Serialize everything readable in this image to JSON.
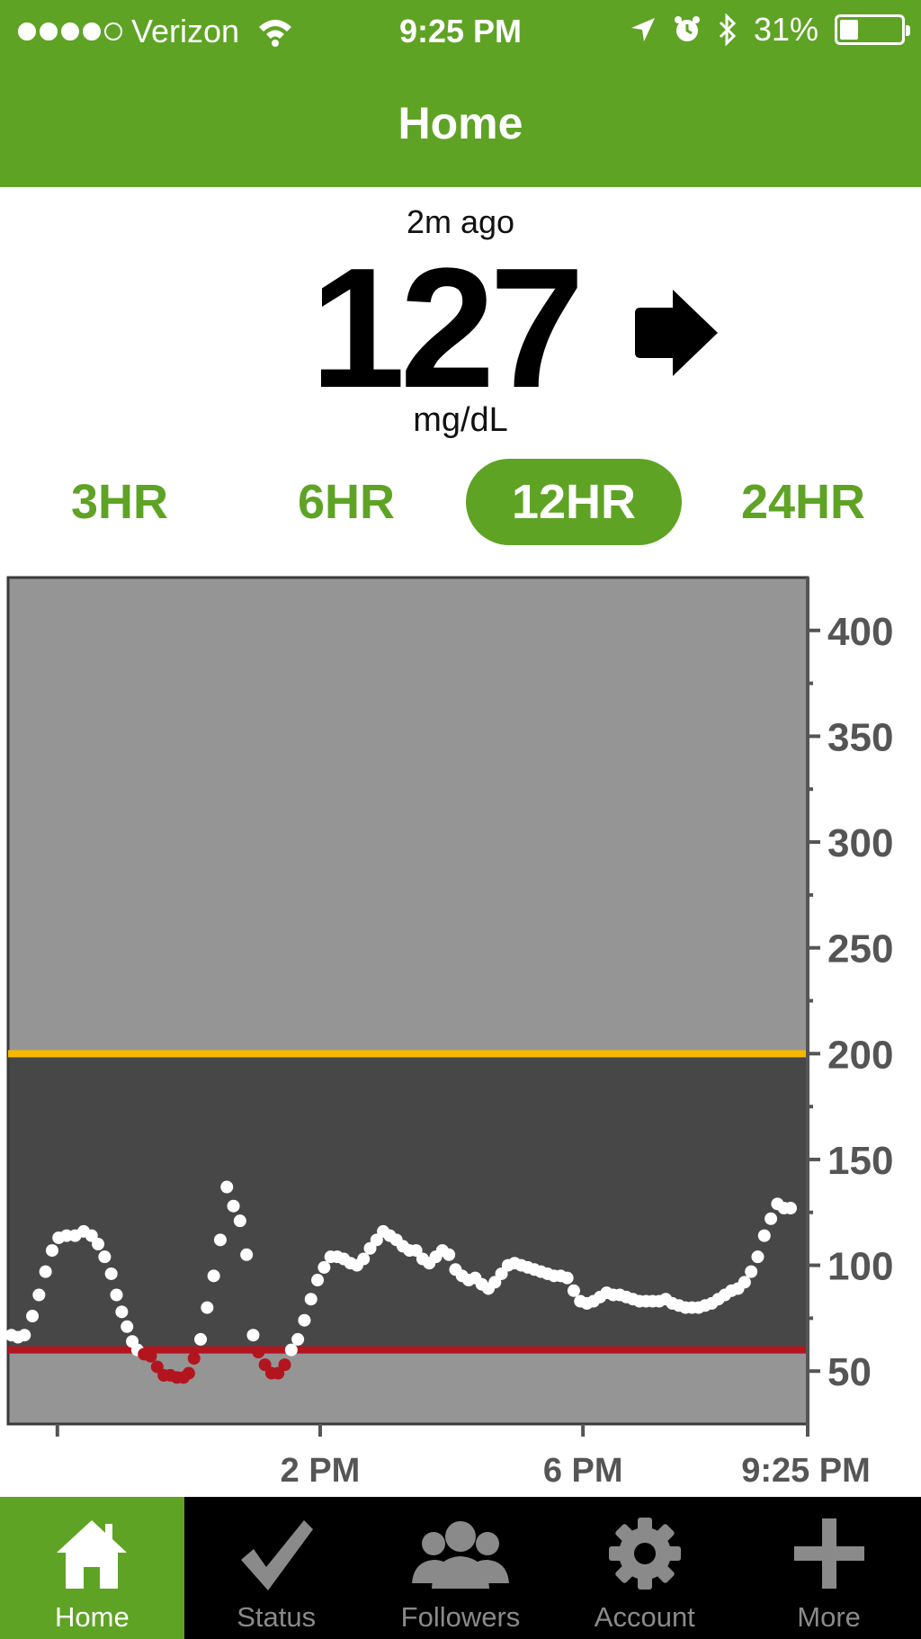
{
  "status_bar": {
    "carrier": "Verizon",
    "time": "9:25 PM",
    "battery": "31%",
    "battery_level": 0.31,
    "signal_bars": 4
  },
  "nav": {
    "title": "Home"
  },
  "reading": {
    "ago": "2m ago",
    "value": "127",
    "unit": "mg/dL",
    "trend": "steady-arrow-right"
  },
  "range_tabs": [
    {
      "label": "3HR",
      "active": false
    },
    {
      "label": "6HR",
      "active": false
    },
    {
      "label": "12HR",
      "active": true
    },
    {
      "label": "24HR",
      "active": false
    }
  ],
  "colors": {
    "brand_green": "#5fa325",
    "high_line": "#f5b800",
    "low_line": "#b3151f",
    "in_range_bg": "#474747",
    "out_range_bg": "#959595"
  },
  "chart_data": {
    "type": "scatter",
    "ylim": [
      25,
      425
    ],
    "yticks": [
      "400",
      "350",
      "300",
      "250",
      "200",
      "150",
      "100",
      "50"
    ],
    "ytick_values": [
      400,
      350,
      300,
      250,
      200,
      150,
      100,
      50
    ],
    "xlim_hours": [
      9.25,
      21.42
    ],
    "xticks": [
      {
        "label": "",
        "hour": 10
      },
      {
        "label": "2 PM",
        "hour": 14
      },
      {
        "label": "6 PM",
        "hour": 18
      },
      {
        "label": "9:25 PM",
        "hour": 21.42
      }
    ],
    "high_threshold": 200,
    "low_threshold": 60,
    "points": [
      [
        9.3,
        67
      ],
      [
        9.4,
        66
      ],
      [
        9.5,
        67
      ],
      [
        9.62,
        76
      ],
      [
        9.72,
        86
      ],
      [
        9.82,
        97
      ],
      [
        9.92,
        107
      ],
      [
        10.02,
        113
      ],
      [
        10.14,
        114
      ],
      [
        10.27,
        114
      ],
      [
        10.4,
        116
      ],
      [
        10.52,
        114
      ],
      [
        10.62,
        110
      ],
      [
        10.72,
        104
      ],
      [
        10.82,
        96
      ],
      [
        10.9,
        86
      ],
      [
        10.98,
        78
      ],
      [
        11.06,
        71
      ],
      [
        11.14,
        64
      ],
      [
        11.22,
        60
      ],
      [
        11.32,
        58
      ],
      [
        11.42,
        57
      ],
      [
        11.52,
        52
      ],
      [
        11.62,
        48
      ],
      [
        11.72,
        48
      ],
      [
        11.82,
        47
      ],
      [
        11.92,
        47
      ],
      [
        12.0,
        49
      ],
      [
        12.08,
        56
      ],
      [
        12.18,
        65
      ],
      [
        12.28,
        80
      ],
      [
        12.38,
        95
      ],
      [
        12.48,
        112
      ],
      [
        12.58,
        137
      ],
      [
        12.68,
        128
      ],
      [
        12.78,
        121
      ],
      [
        12.88,
        105
      ],
      [
        12.98,
        67
      ],
      [
        13.06,
        59
      ],
      [
        13.16,
        53
      ],
      [
        13.26,
        49
      ],
      [
        13.36,
        49
      ],
      [
        13.46,
        53
      ],
      [
        13.56,
        60
      ],
      [
        13.66,
        65
      ],
      [
        13.76,
        74
      ],
      [
        13.86,
        84
      ],
      [
        13.96,
        93
      ],
      [
        14.06,
        99
      ],
      [
        14.16,
        104
      ],
      [
        14.26,
        104
      ],
      [
        14.36,
        103
      ],
      [
        14.46,
        101
      ],
      [
        14.56,
        100
      ],
      [
        14.66,
        103
      ],
      [
        14.76,
        108
      ],
      [
        14.86,
        112
      ],
      [
        14.96,
        116
      ],
      [
        15.06,
        114
      ],
      [
        15.16,
        112
      ],
      [
        15.26,
        109
      ],
      [
        15.36,
        107
      ],
      [
        15.46,
        107
      ],
      [
        15.56,
        103
      ],
      [
        15.66,
        101
      ],
      [
        15.76,
        104
      ],
      [
        15.86,
        107
      ],
      [
        15.96,
        105
      ],
      [
        16.06,
        98
      ],
      [
        16.16,
        95
      ],
      [
        16.26,
        93
      ],
      [
        16.36,
        94
      ],
      [
        16.46,
        91
      ],
      [
        16.56,
        89
      ],
      [
        16.66,
        92
      ],
      [
        16.76,
        96
      ],
      [
        16.86,
        100
      ],
      [
        16.96,
        101
      ],
      [
        17.06,
        100
      ],
      [
        17.16,
        99
      ],
      [
        17.26,
        98
      ],
      [
        17.36,
        97
      ],
      [
        17.46,
        96
      ],
      [
        17.56,
        95
      ],
      [
        17.66,
        95
      ],
      [
        17.76,
        94
      ],
      [
        17.86,
        88
      ],
      [
        17.96,
        83
      ],
      [
        18.06,
        82
      ],
      [
        18.16,
        83
      ],
      [
        18.26,
        85
      ],
      [
        18.36,
        87
      ],
      [
        18.46,
        86
      ],
      [
        18.56,
        86
      ],
      [
        18.66,
        85
      ],
      [
        18.76,
        84
      ],
      [
        18.86,
        83
      ],
      [
        18.96,
        83
      ],
      [
        19.06,
        83
      ],
      [
        19.16,
        83
      ],
      [
        19.26,
        84
      ],
      [
        19.36,
        82
      ],
      [
        19.46,
        81
      ],
      [
        19.56,
        80
      ],
      [
        19.66,
        80
      ],
      [
        19.76,
        80
      ],
      [
        19.86,
        81
      ],
      [
        19.96,
        82
      ],
      [
        20.06,
        84
      ],
      [
        20.16,
        86
      ],
      [
        20.26,
        88
      ],
      [
        20.36,
        89
      ],
      [
        20.46,
        92
      ],
      [
        20.56,
        97
      ],
      [
        20.66,
        104
      ],
      [
        20.76,
        114
      ],
      [
        20.86,
        122
      ],
      [
        20.96,
        129
      ],
      [
        21.06,
        127
      ],
      [
        21.16,
        127
      ]
    ]
  },
  "tab_bar": [
    {
      "label": "Home",
      "icon": "house-icon",
      "active": true
    },
    {
      "label": "Status",
      "icon": "checkmark-icon",
      "active": false
    },
    {
      "label": "Followers",
      "icon": "people-icon",
      "active": false
    },
    {
      "label": "Account",
      "icon": "gear-icon",
      "active": false
    },
    {
      "label": "More",
      "icon": "plus-icon",
      "active": false
    }
  ]
}
